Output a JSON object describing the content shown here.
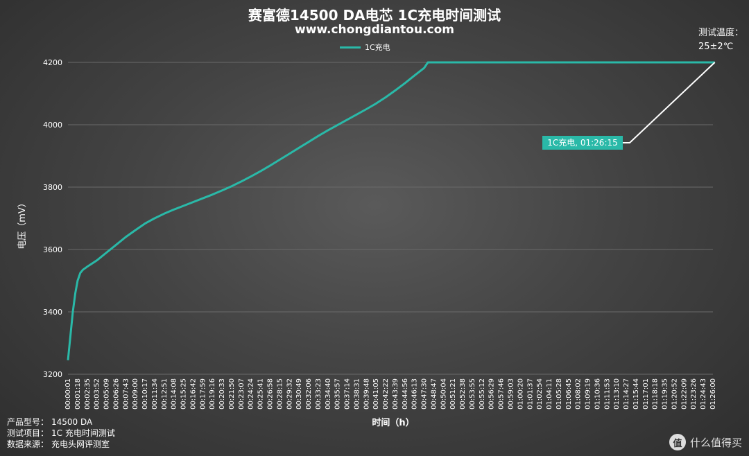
{
  "title": "赛富德14500 DA电芯 1C充电时间测试",
  "subtitle": "www.chongdiantou.com",
  "temperature": {
    "label": "测试温度：",
    "value": "25±2℃"
  },
  "footer": [
    {
      "label": "产品型号：",
      "value": "14500 DA"
    },
    {
      "label": "测试项目：",
      "value": "1C 充电时间测试"
    },
    {
      "label": "数据来源：",
      "value": "充电头网评测室"
    }
  ],
  "logo": {
    "badge": "值",
    "text": "什么值得买"
  },
  "colors": {
    "line": "#2ab9a8",
    "callout_line": "#ffffff",
    "grid": "#6a6a6a"
  },
  "chart_data": {
    "type": "line",
    "xlabel": "时间（h）",
    "ylabel": "电压（mV）",
    "ylim": [
      3200,
      4200
    ],
    "yticks": [
      3200,
      3400,
      3600,
      3800,
      4000,
      4200
    ],
    "grid": true,
    "legend": "top-center",
    "xticks": [
      "00:00:01",
      "00:01:18",
      "00:02:35",
      "00:03:52",
      "00:05:09",
      "00:06:26",
      "00:07:43",
      "00:09:00",
      "00:10:17",
      "00:11:34",
      "00:12:51",
      "00:14:08",
      "00:15:25",
      "00:16:42",
      "00:17:59",
      "00:19:16",
      "00:20:33",
      "00:21:50",
      "00:23:07",
      "00:24:24",
      "00:25:41",
      "00:26:58",
      "00:28:15",
      "00:29:32",
      "00:30:49",
      "00:32:06",
      "00:33:23",
      "00:34:40",
      "00:35:57",
      "00:37:14",
      "00:38:31",
      "00:39:48",
      "00:41:05",
      "00:42:22",
      "00:43:39",
      "00:44:56",
      "00:46:13",
      "00:47:30",
      "00:48:47",
      "00:50:04",
      "00:51:21",
      "00:52:38",
      "00:53:55",
      "00:55:12",
      "00:56:29",
      "00:57:46",
      "00:59:03",
      "01:00:20",
      "01:01:37",
      "01:02:54",
      "01:04:11",
      "01:05:28",
      "01:06:45",
      "01:08:02",
      "01:09:19",
      "01:10:36",
      "01:11:53",
      "01:13:10",
      "01:14:27",
      "01:15:44",
      "01:17:01",
      "01:18:18",
      "01:19:35",
      "01:20:52",
      "01:22:09",
      "01:23:26",
      "01:24:43",
      "01:26:00"
    ],
    "series": [
      {
        "name": "1C充电",
        "points": [
          [
            "00:00:01",
            3245
          ],
          [
            "00:00:20",
            3320
          ],
          [
            "00:00:40",
            3400
          ],
          [
            "00:01:00",
            3460
          ],
          [
            "00:01:18",
            3500
          ],
          [
            "00:01:40",
            3525
          ],
          [
            "00:02:00",
            3535
          ],
          [
            "00:02:35",
            3545
          ],
          [
            "00:03:52",
            3565
          ],
          [
            "00:05:09",
            3590
          ],
          [
            "00:06:26",
            3615
          ],
          [
            "00:07:43",
            3640
          ],
          [
            "00:09:00",
            3662
          ],
          [
            "00:10:17",
            3683
          ],
          [
            "00:11:34",
            3700
          ],
          [
            "00:12:51",
            3715
          ],
          [
            "00:14:08",
            3728
          ],
          [
            "00:15:25",
            3740
          ],
          [
            "00:16:42",
            3752
          ],
          [
            "00:17:59",
            3764
          ],
          [
            "00:19:16",
            3776
          ],
          [
            "00:20:33",
            3789
          ],
          [
            "00:21:50",
            3803
          ],
          [
            "00:23:07",
            3818
          ],
          [
            "00:24:24",
            3834
          ],
          [
            "00:25:41",
            3851
          ],
          [
            "00:26:58",
            3869
          ],
          [
            "00:28:15",
            3888
          ],
          [
            "00:29:32",
            3907
          ],
          [
            "00:30:49",
            3926
          ],
          [
            "00:32:06",
            3945
          ],
          [
            "00:33:23",
            3964
          ],
          [
            "00:34:40",
            3982
          ],
          [
            "00:35:57",
            3999
          ],
          [
            "00:37:14",
            4016
          ],
          [
            "00:38:31",
            4033
          ],
          [
            "00:39:48",
            4050
          ],
          [
            "00:41:05",
            4068
          ],
          [
            "00:42:22",
            4088
          ],
          [
            "00:43:39",
            4110
          ],
          [
            "00:44:56",
            4133
          ],
          [
            "00:46:13",
            4158
          ],
          [
            "00:47:30",
            4182
          ],
          [
            "00:48:00",
            4200
          ],
          [
            "00:50:04",
            4200
          ],
          [
            "01:00:00",
            4200
          ],
          [
            "01:10:00",
            4200
          ],
          [
            "01:20:00",
            4200
          ],
          [
            "01:26:15",
            4200
          ]
        ]
      }
    ],
    "annotation": {
      "text": "1C充电, 01:26:15",
      "x": "01:26:15",
      "y": 4200
    }
  }
}
